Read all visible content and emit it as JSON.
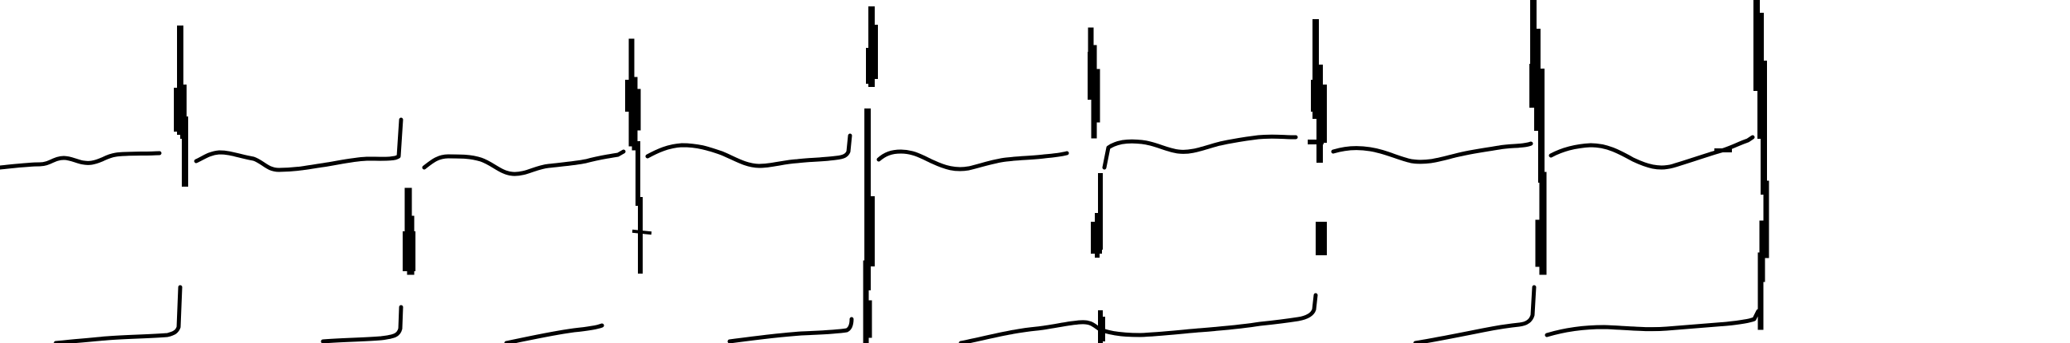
{
  "figure": {
    "kind": "scanned-ecg-rhythm-strip",
    "background_color": "#ffffff",
    "ink_color": "#000000",
    "rows_visible": 3,
    "has_text": false
  },
  "strips": [
    {
      "row": "top",
      "content": "baseline-segments-with-qrs-spikes"
    },
    {
      "row": "middle",
      "content": "isolated-qrs-deflections"
    },
    {
      "row": "bottom",
      "content": "baseline-segments-with-qrs-spikes"
    }
  ]
}
